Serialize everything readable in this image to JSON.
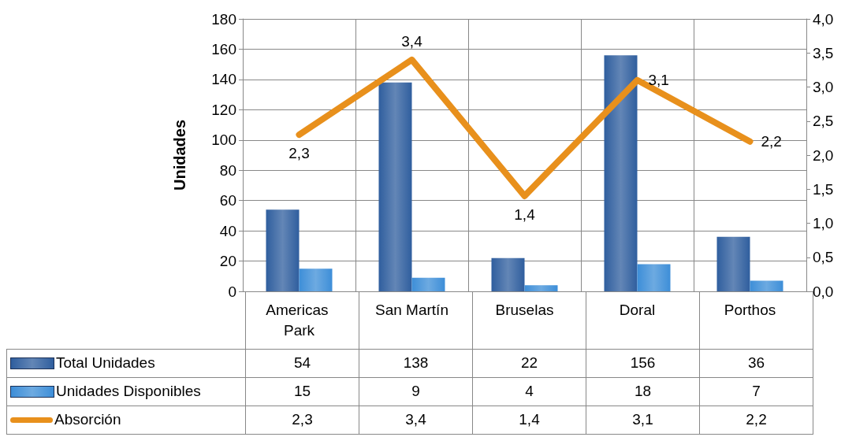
{
  "chart_data": {
    "type": "bar",
    "ylabel": "Unidades",
    "categories": [
      "Americas Park",
      "San Martín",
      "Bruselas",
      "Doral",
      "Porthos"
    ],
    "series": [
      {
        "name": "Total Unidades",
        "color": "#2f5e9e",
        "values": [
          54,
          138,
          22,
          156,
          36
        ],
        "value_labels": [
          "54",
          "138",
          "22",
          "156",
          "36"
        ]
      },
      {
        "name": "Unidades Disponibles",
        "color": "#3d8ed8",
        "values": [
          15,
          9,
          4,
          18,
          7
        ],
        "value_labels": [
          "15",
          "9",
          "4",
          "18",
          "7"
        ]
      },
      {
        "name": "Absorción",
        "type": "line",
        "axis": "y2",
        "color": "#e8901c",
        "values": [
          2.3,
          3.4,
          1.4,
          3.1,
          2.2
        ],
        "value_labels": [
          "2,3",
          "3,4",
          "1,4",
          "3,1",
          "2,2"
        ]
      }
    ],
    "ylim": [
      0,
      180
    ],
    "yticks": [
      0,
      20,
      40,
      60,
      80,
      100,
      120,
      140,
      160,
      180
    ],
    "y2lim": [
      0,
      4.0
    ],
    "y2ticks": [
      {
        "value": 0,
        "label": "0,0"
      },
      {
        "value": 0.5,
        "label": "0,5"
      },
      {
        "value": 1,
        "label": "1,0"
      },
      {
        "value": 1.5,
        "label": "1,5"
      },
      {
        "value": 2,
        "label": "2,0"
      },
      {
        "value": 2.5,
        "label": "2,5"
      },
      {
        "value": 3,
        "label": "3,0"
      },
      {
        "value": 3.5,
        "label": "3,5"
      },
      {
        "value": 4,
        "label": "4,0"
      }
    ],
    "grid": true,
    "legend": "bottom",
    "marker": "none",
    "line_style": "solid"
  }
}
